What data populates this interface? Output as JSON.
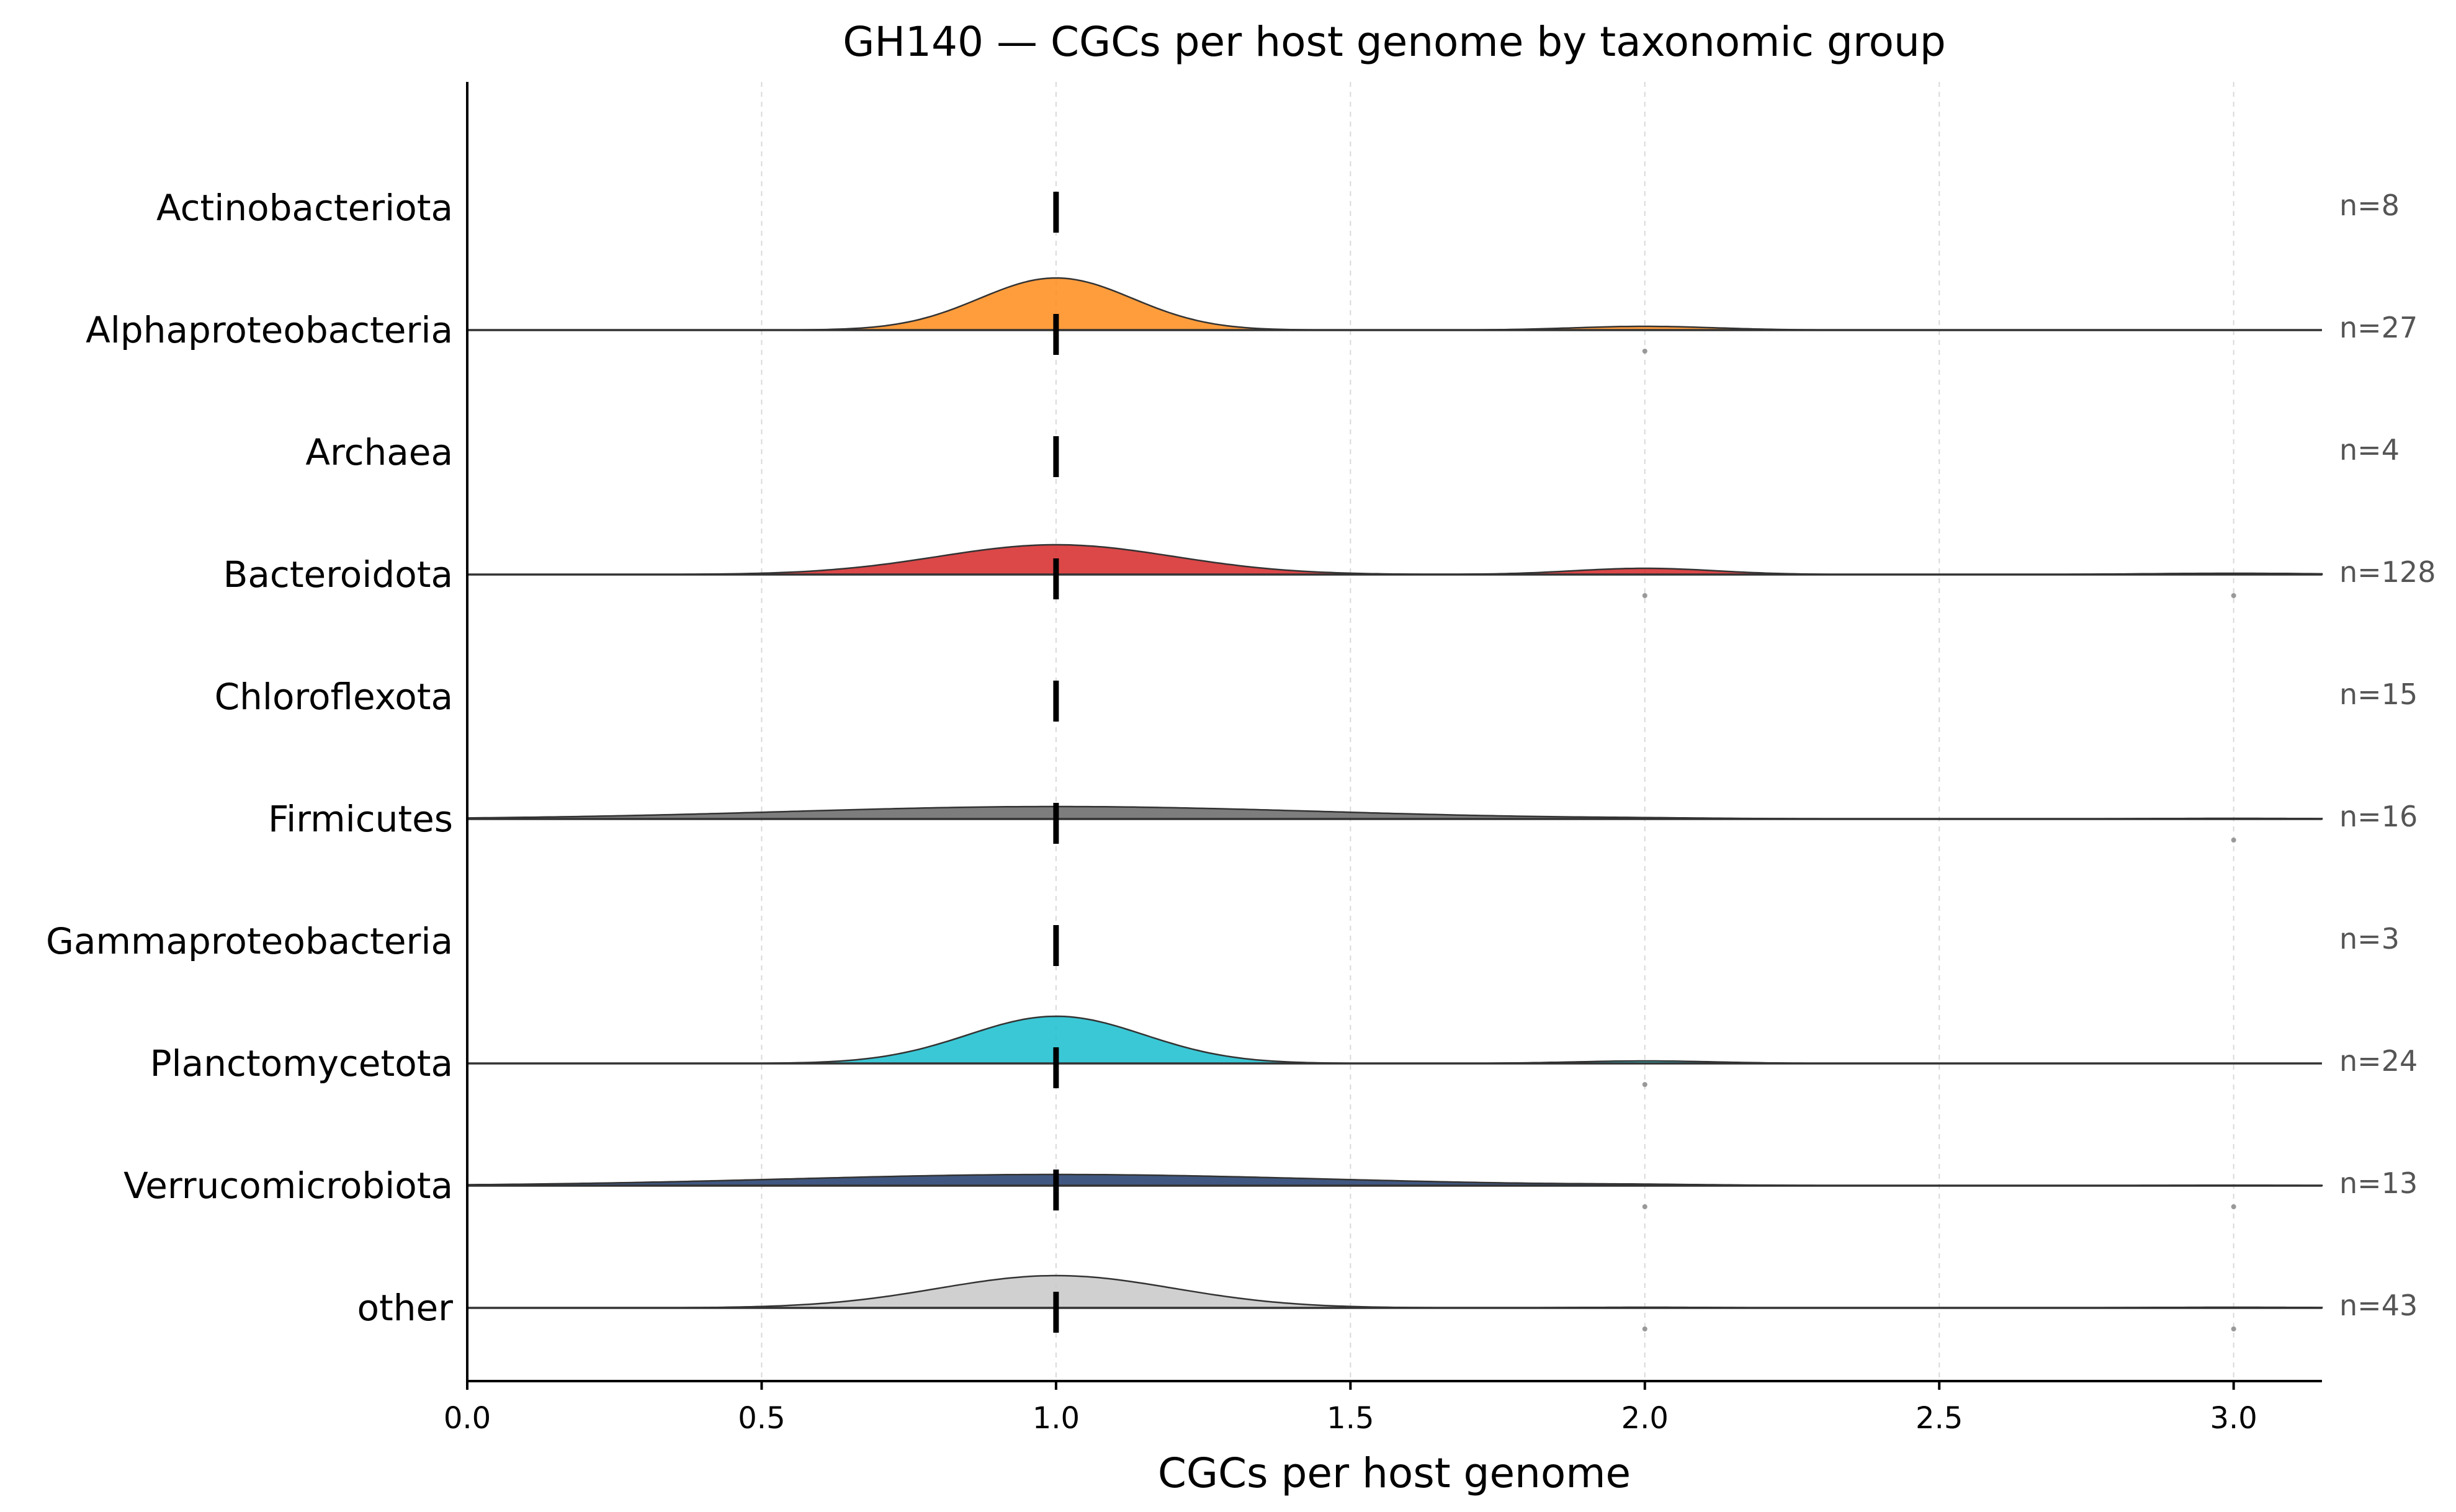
{
  "chart_data": {
    "type": "ridgeline",
    "title": "GH140 — CGCs per host genome by taxonomic group",
    "xlabel": "CGCs per host genome",
    "xlim": [
      0.0,
      3.15
    ],
    "xticks": [
      "0.0",
      "0.5",
      "1.0",
      "1.5",
      "2.0",
      "2.5",
      "3.0"
    ],
    "grid": "vertical dashed",
    "series": [
      {
        "name": "Actinobacteriota",
        "n_label": "n=8",
        "color": "#ff7f0e",
        "median": 1.0,
        "density": false,
        "peak": 0,
        "bw": 0.15,
        "second_mode": 0,
        "third_mode": 0,
        "outliers": []
      },
      {
        "name": "Alphaproteobacteria",
        "n_label": "n=27",
        "color": "#ff8c1a",
        "median": 1.0,
        "density": true,
        "peak": 0.42,
        "bw": 0.13,
        "second_mode": 0.03,
        "third_mode": 0,
        "outliers": [
          2.0
        ]
      },
      {
        "name": "Archaea",
        "n_label": "n=4",
        "color": "#2ca02c",
        "median": 1.0,
        "density": false,
        "peak": 0,
        "bw": 0.15,
        "second_mode": 0,
        "third_mode": 0,
        "outliers": []
      },
      {
        "name": "Bacteroidota",
        "n_label": "n=128",
        "color": "#d62728",
        "median": 1.0,
        "density": true,
        "peak": 0.24,
        "bw": 0.2,
        "second_mode": 0.05,
        "third_mode": 0.01,
        "outliers": [
          2.0,
          3.0
        ]
      },
      {
        "name": "Chloroflexota",
        "n_label": "n=15",
        "color": "#9467bd",
        "median": 1.0,
        "density": false,
        "peak": 0,
        "bw": 0.15,
        "second_mode": 0,
        "third_mode": 0,
        "outliers": []
      },
      {
        "name": "Firmicutes",
        "n_label": "n=16",
        "color": "#666666",
        "median": 1.0,
        "density": true,
        "peak": 0.1,
        "bw": 0.45,
        "second_mode": 0.003,
        "third_mode": 0.005,
        "outliers": [
          3.0
        ]
      },
      {
        "name": "Gammaproteobacteria",
        "n_label": "n=3",
        "color": "#e377c2",
        "median": 1.0,
        "density": false,
        "peak": 0,
        "bw": 0.15,
        "second_mode": 0,
        "third_mode": 0,
        "outliers": []
      },
      {
        "name": "Planctomycetota",
        "n_label": "n=24",
        "color": "#17becf",
        "median": 1.0,
        "density": true,
        "peak": 0.38,
        "bw": 0.15,
        "second_mode": 0.02,
        "third_mode": 0,
        "outliers": [
          2.0
        ]
      },
      {
        "name": "Verrucomicrobiota",
        "n_label": "n=13",
        "color": "#1f3b6b",
        "median": 1.0,
        "density": true,
        "peak": 0.09,
        "bw": 0.45,
        "second_mode": 0.005,
        "third_mode": 0.003,
        "outliers": [
          2.0,
          3.0
        ]
      },
      {
        "name": "other",
        "n_label": "n=43",
        "color": "#c8c8c8",
        "median": 1.0,
        "density": true,
        "peak": 0.26,
        "bw": 0.2,
        "second_mode": 0.005,
        "third_mode": 0.005,
        "outliers": [
          2.0,
          3.0
        ]
      }
    ]
  }
}
